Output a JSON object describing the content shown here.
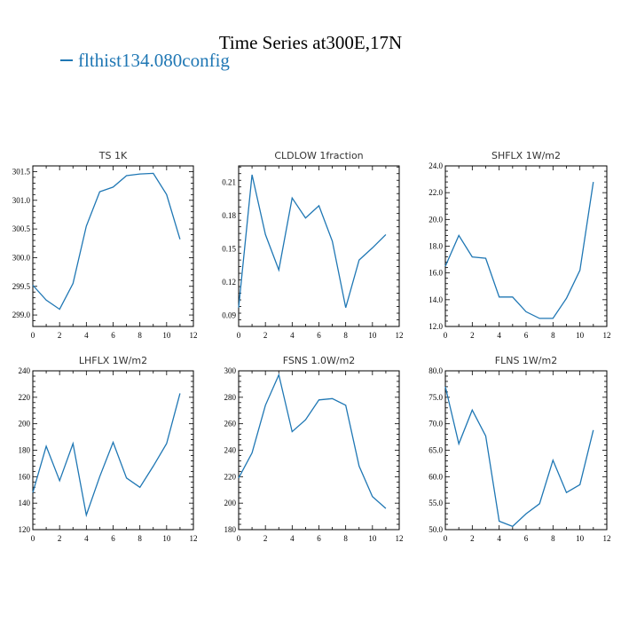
{
  "title": "Time Series at300E,17N",
  "legend": {
    "label": "flthist134.080config",
    "color": "#1f77b4"
  },
  "chart_data": [
    {
      "type": "line",
      "title": "TS   1K",
      "x": [
        0,
        1,
        2,
        3,
        4,
        5,
        6,
        7,
        8,
        9,
        10,
        11
      ],
      "series": [
        {
          "values": [
            299.52,
            299.26,
            299.1,
            299.55,
            300.55,
            301.15,
            301.23,
            301.43,
            301.46,
            301.47,
            301.1,
            300.32
          ]
        }
      ],
      "xlim": [
        0,
        12
      ],
      "ylim": [
        298.8,
        301.6
      ],
      "xticks": [
        0,
        2,
        4,
        6,
        8,
        10,
        12
      ],
      "yticks": [
        299.0,
        299.5,
        300.0,
        300.5,
        301.0,
        301.5
      ],
      "ytick_labels": [
        "299.0",
        "299.5",
        "300.0",
        "300.5",
        "301.0",
        "301.5"
      ]
    },
    {
      "type": "line",
      "title": "CLDLOW   1fraction",
      "x": [
        0,
        1,
        2,
        3,
        4,
        5,
        6,
        7,
        8,
        9,
        10,
        11
      ],
      "series": [
        {
          "values": [
            0.097,
            0.217,
            0.163,
            0.131,
            0.196,
            0.178,
            0.189,
            0.157,
            0.097,
            0.14,
            0.151,
            0.163
          ]
        }
      ],
      "xlim": [
        0,
        12
      ],
      "ylim": [
        0.08,
        0.225
      ],
      "xticks": [
        0,
        2,
        4,
        6,
        8,
        10,
        12
      ],
      "yticks": [
        0.09,
        0.12,
        0.15,
        0.18,
        0.21
      ],
      "ytick_labels": [
        "0.09",
        "0.12",
        "0.15",
        "0.18",
        "0.21"
      ]
    },
    {
      "type": "line",
      "title": "SHFLX   1W/m2",
      "x": [
        0,
        1,
        2,
        3,
        4,
        5,
        6,
        7,
        8,
        9,
        10,
        11
      ],
      "series": [
        {
          "values": [
            16.5,
            18.8,
            17.2,
            17.1,
            14.2,
            14.2,
            13.1,
            12.6,
            12.6,
            14.1,
            16.2,
            22.8
          ]
        }
      ],
      "xlim": [
        0,
        12
      ],
      "ylim": [
        12.0,
        24.0
      ],
      "xticks": [
        0,
        2,
        4,
        6,
        8,
        10,
        12
      ],
      "yticks": [
        12,
        14,
        16,
        18,
        20,
        22,
        24
      ],
      "ytick_labels": [
        "12.0",
        "14.0",
        "16.0",
        "18.0",
        "20.0",
        "22.0",
        "24.0"
      ]
    },
    {
      "type": "line",
      "title": "LHFLX   1W/m2",
      "x": [
        0,
        1,
        2,
        3,
        4,
        5,
        6,
        7,
        8,
        9,
        10,
        11
      ],
      "series": [
        {
          "values": [
            148,
            183,
            157,
            185,
            131,
            160,
            186,
            159,
            152,
            168,
            185,
            223
          ]
        }
      ],
      "xlim": [
        0,
        12
      ],
      "ylim": [
        120,
        240
      ],
      "xticks": [
        0,
        2,
        4,
        6,
        8,
        10,
        12
      ],
      "yticks": [
        120,
        140,
        160,
        180,
        200,
        220,
        240
      ],
      "ytick_labels": [
        "120",
        "140",
        "160",
        "180",
        "200",
        "220",
        "240"
      ]
    },
    {
      "type": "line",
      "title": "FSNS   1.0W/m2",
      "x": [
        0,
        1,
        2,
        3,
        4,
        5,
        6,
        7,
        8,
        9,
        10,
        11
      ],
      "series": [
        {
          "values": [
            219,
            238,
            274,
            297,
            254,
            263,
            278,
            279,
            274,
            228,
            205,
            196
          ]
        }
      ],
      "xlim": [
        0,
        12
      ],
      "ylim": [
        180,
        300
      ],
      "xticks": [
        0,
        2,
        4,
        6,
        8,
        10,
        12
      ],
      "yticks": [
        180,
        200,
        220,
        240,
        260,
        280,
        300
      ],
      "ytick_labels": [
        "180",
        "200",
        "220",
        "240",
        "260",
        "280",
        "300"
      ]
    },
    {
      "type": "line",
      "title": "FLNS   1W/m2",
      "x": [
        0,
        1,
        2,
        3,
        4,
        5,
        6,
        7,
        8,
        9,
        10,
        11
      ],
      "series": [
        {
          "values": [
            77.0,
            66.2,
            72.6,
            67.7,
            51.6,
            50.6,
            53.0,
            54.9,
            63.1,
            57.0,
            58.5,
            68.8
          ]
        }
      ],
      "xlim": [
        0,
        12
      ],
      "ylim": [
        50.0,
        80.0
      ],
      "xticks": [
        0,
        2,
        4,
        6,
        8,
        10,
        12
      ],
      "yticks": [
        50,
        55,
        60,
        65,
        70,
        75,
        80
      ],
      "ytick_labels": [
        "50.0",
        "55.0",
        "60.0",
        "65.0",
        "70.0",
        "75.0",
        "80.0"
      ]
    }
  ]
}
